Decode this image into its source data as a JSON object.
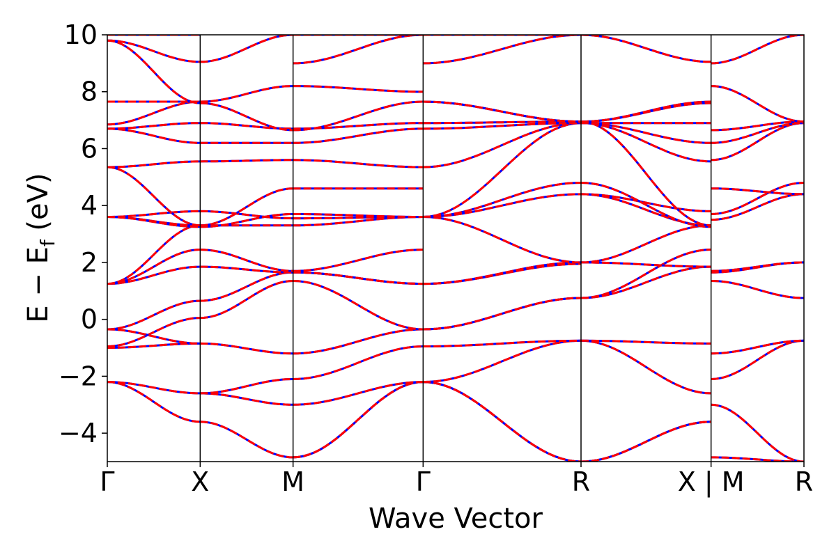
{
  "chart_data": {
    "type": "line",
    "xlabel": "Wave Vector",
    "ylabel_parts": {
      "main": "E − E",
      "sub": "f",
      "unit": " (eV)"
    },
    "ylim": [
      -5,
      10
    ],
    "yticks": [
      -4,
      -2,
      0,
      2,
      4,
      6,
      8,
      10
    ],
    "ytick_labels": [
      "−4",
      "−2",
      "0",
      "2",
      "4",
      "6",
      "8",
      "10"
    ],
    "xticks": [
      0,
      1,
      2,
      3.4,
      5.1,
      6.5,
      7.5
    ],
    "xtick_labels": [
      "Γ",
      "X",
      "M",
      "Γ",
      "R",
      "X | M",
      "R"
    ],
    "xlim": [
      0,
      7.5
    ],
    "grid": false,
    "line_colors": {
      "band_solid": "#0000ff",
      "band_dashed": "#ff0000",
      "divider": "#000000"
    },
    "segments": [
      {
        "from": "Γ",
        "to": "X",
        "x": [
          0,
          1
        ],
        "bands": [
          [
            -2.2,
            -3.6
          ],
          [
            -2.2,
            -2.6
          ],
          [
            -1.0,
            -0.85
          ],
          [
            -0.95,
            0.05
          ],
          [
            -0.35,
            0.65
          ],
          [
            -0.35,
            -0.85
          ],
          [
            1.25,
            1.85
          ],
          [
            1.25,
            2.45
          ],
          [
            1.25,
            3.3
          ],
          [
            3.6,
            3.3
          ],
          [
            3.6,
            3.8
          ],
          [
            3.6,
            3.25
          ],
          [
            5.35,
            5.55
          ],
          [
            5.35,
            3.3
          ],
          [
            6.7,
            6.2
          ],
          [
            6.7,
            6.9
          ],
          [
            6.85,
            7.65
          ],
          [
            7.65,
            7.65
          ],
          [
            9.8,
            9.05
          ],
          [
            9.8,
            7.6
          ],
          [
            10.0,
            10.0
          ]
        ]
      },
      {
        "from": "X",
        "to": "M",
        "x": [
          1,
          2
        ],
        "bands": [
          [
            -3.6,
            -4.85
          ],
          [
            -2.6,
            -3.0
          ],
          [
            -2.6,
            -2.1
          ],
          [
            -0.85,
            -1.2
          ],
          [
            0.05,
            1.35
          ],
          [
            0.65,
            1.65
          ],
          [
            1.85,
            1.65
          ],
          [
            2.45,
            1.7
          ],
          [
            3.3,
            3.3
          ],
          [
            3.8,
            3.55
          ],
          [
            3.25,
            3.7
          ],
          [
            3.3,
            4.6
          ],
          [
            5.55,
            5.6
          ],
          [
            6.2,
            6.2
          ],
          [
            6.9,
            6.7
          ],
          [
            7.65,
            8.2
          ],
          [
            7.6,
            6.65
          ],
          [
            9.05,
            10.0
          ]
        ]
      },
      {
        "from": "M",
        "to": "Γ",
        "x": [
          2,
          3.4
        ],
        "bands": [
          [
            -4.85,
            -2.2
          ],
          [
            -4.85,
            -2.2
          ],
          [
            -3.0,
            -2.2
          ],
          [
            -2.1,
            -0.95
          ],
          [
            -1.2,
            -0.35
          ],
          [
            1.35,
            -0.35
          ],
          [
            1.65,
            1.25
          ],
          [
            1.65,
            1.25
          ],
          [
            1.7,
            2.45
          ],
          [
            3.3,
            3.6
          ],
          [
            3.55,
            3.6
          ],
          [
            3.7,
            3.6
          ],
          [
            4.6,
            4.6
          ],
          [
            5.6,
            5.35
          ],
          [
            6.2,
            6.7
          ],
          [
            6.7,
            6.9
          ],
          [
            6.65,
            7.65
          ],
          [
            8.2,
            8.0
          ],
          [
            9.0,
            10.0
          ],
          [
            10.0,
            10.0
          ]
        ]
      },
      {
        "from": "Γ",
        "to": "R",
        "x": [
          3.4,
          5.1
        ],
        "bands": [
          [
            -2.2,
            -5.0
          ],
          [
            -2.2,
            -5.0
          ],
          [
            -2.2,
            -0.75
          ],
          [
            -0.95,
            -0.75
          ],
          [
            -0.35,
            0.75
          ],
          [
            -0.35,
            0.75
          ],
          [
            1.25,
            1.95
          ],
          [
            1.25,
            2.0
          ],
          [
            3.6,
            2.0
          ],
          [
            3.6,
            4.4
          ],
          [
            3.6,
            4.8
          ],
          [
            3.6,
            6.9
          ],
          [
            5.35,
            6.9
          ],
          [
            6.7,
            6.9
          ],
          [
            6.9,
            6.95
          ],
          [
            7.65,
            6.95
          ],
          [
            7.65,
            6.95
          ],
          [
            9.0,
            10.0
          ],
          [
            10.0,
            10.0
          ]
        ]
      },
      {
        "from": "R",
        "to": "X",
        "x": [
          5.1,
          6.5
        ],
        "bands": [
          [
            -5.0,
            -3.6
          ],
          [
            -5.0,
            -3.6
          ],
          [
            -0.75,
            -2.6
          ],
          [
            -0.75,
            -0.85
          ],
          [
            0.75,
            1.85
          ],
          [
            0.75,
            2.45
          ],
          [
            2.0,
            1.85
          ],
          [
            2.0,
            3.3
          ],
          [
            4.4,
            3.3
          ],
          [
            4.4,
            3.8
          ],
          [
            4.8,
            3.25
          ],
          [
            6.9,
            5.55
          ],
          [
            6.9,
            6.2
          ],
          [
            6.9,
            6.9
          ],
          [
            6.95,
            7.6
          ],
          [
            6.95,
            7.65
          ],
          [
            6.95,
            3.3
          ],
          [
            10.0,
            9.05
          ]
        ]
      },
      {
        "from": "M",
        "to": "R",
        "x": [
          6.5,
          7.5
        ],
        "bands": [
          [
            -4.85,
            -5.0
          ],
          [
            -3.0,
            -5.0
          ],
          [
            -2.1,
            -0.75
          ],
          [
            -1.2,
            -0.75
          ],
          [
            1.35,
            0.75
          ],
          [
            1.65,
            2.0
          ],
          [
            1.7,
            2.0
          ],
          [
            3.5,
            4.4
          ],
          [
            3.7,
            4.8
          ],
          [
            4.6,
            4.4
          ],
          [
            5.6,
            6.9
          ],
          [
            6.2,
            6.9
          ],
          [
            6.65,
            6.95
          ],
          [
            8.2,
            6.95
          ],
          [
            9.0,
            10.0
          ]
        ]
      }
    ]
  }
}
